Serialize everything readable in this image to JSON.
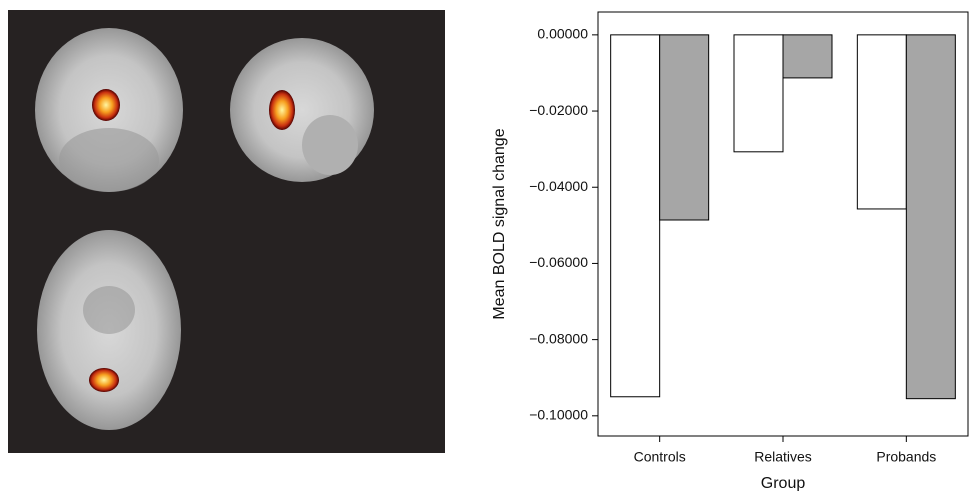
{
  "chart_data": {
    "type": "bar",
    "y_label": "Mean BOLD signal change",
    "x_label": "Group",
    "categories": [
      "Controls",
      "Relatives",
      "Probands"
    ],
    "series": [
      {
        "color": "#ffffff",
        "values": [
          -0.095,
          -0.0307,
          -0.0457
        ]
      },
      {
        "color": "#a6a6a6",
        "values": [
          -0.0486,
          -0.0113,
          -0.0955
        ]
      }
    ],
    "ylim": [
      -0.1053,
      0.006
    ],
    "yticks": [
      {
        "value": 0,
        "label": "0.00000"
      },
      {
        "value": -0.02,
        "label": "−0.02000"
      },
      {
        "value": -0.04,
        "label": "−0.04000"
      },
      {
        "value": -0.06,
        "label": "−0.06000"
      },
      {
        "value": -0.08,
        "label": "−0.08000"
      },
      {
        "value": -0.1,
        "label": "−0.10000"
      }
    ]
  }
}
